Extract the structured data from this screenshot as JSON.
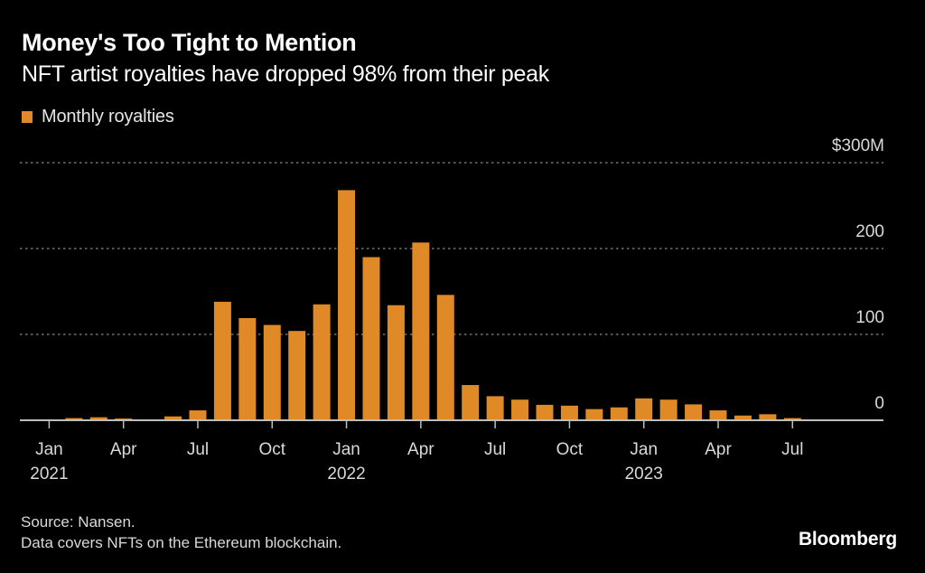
{
  "header": {
    "title": "Money's Too Tight to Mention",
    "subtitle": "NFT artist royalties have dropped 98% from their peak"
  },
  "legend": {
    "label": "Monthly royalties",
    "color": "#DF8A26"
  },
  "footer": {
    "source": "Source: Nansen.",
    "note": "Data covers NFTs on the Ethereum blockchain.",
    "brand": "Bloomberg"
  },
  "colors": {
    "background": "#000000",
    "bar": "#DF8A26",
    "grid": "#8a8a8a",
    "axis": "#bdbdbd",
    "text": "#d9d9d9"
  },
  "chart_data": {
    "type": "bar",
    "title": "Money's Too Tight to Mention",
    "subtitle": "NFT artist royalties have dropped 98% from their peak",
    "xlabel": "",
    "ylabel": "",
    "units": "$M",
    "ylim": [
      0,
      300
    ],
    "yticks": [
      0,
      100,
      200,
      300
    ],
    "ytick_labels": [
      "0",
      "100",
      "200",
      "$300M"
    ],
    "y_axis_position": "right",
    "grid": true,
    "legend_position": "top-left",
    "categories": [
      "2021-01",
      "2021-02",
      "2021-03",
      "2021-04",
      "2021-05",
      "2021-06",
      "2021-07",
      "2021-08",
      "2021-09",
      "2021-10",
      "2021-11",
      "2021-12",
      "2022-01",
      "2022-02",
      "2022-03",
      "2022-04",
      "2022-05",
      "2022-06",
      "2022-07",
      "2022-08",
      "2022-09",
      "2022-10",
      "2022-11",
      "2022-12",
      "2023-01",
      "2023-02",
      "2023-03",
      "2023-04",
      "2023-05",
      "2023-06",
      "2023-07"
    ],
    "series": [
      {
        "name": "Monthly royalties",
        "values": [
          0.5,
          2.5,
          3.5,
          2,
          1,
          4.5,
          11.5,
          138,
          119,
          111,
          104,
          135,
          268,
          190,
          134,
          207,
          146,
          41,
          28,
          24,
          18,
          17,
          13,
          15,
          25.5,
          24,
          18.5,
          11.5,
          5.5,
          7,
          2.5
        ]
      }
    ],
    "xticks": [
      {
        "index": 0,
        "month": "Jan",
        "year": "2021"
      },
      {
        "index": 3,
        "month": "Apr",
        "year": ""
      },
      {
        "index": 6,
        "month": "Jul",
        "year": ""
      },
      {
        "index": 9,
        "month": "Oct",
        "year": ""
      },
      {
        "index": 12,
        "month": "Jan",
        "year": "2022"
      },
      {
        "index": 15,
        "month": "Apr",
        "year": ""
      },
      {
        "index": 18,
        "month": "Jul",
        "year": ""
      },
      {
        "index": 21,
        "month": "Oct",
        "year": ""
      },
      {
        "index": 24,
        "month": "Jan",
        "year": "2023"
      },
      {
        "index": 27,
        "month": "Apr",
        "year": ""
      },
      {
        "index": 30,
        "month": "Jul",
        "year": ""
      }
    ]
  }
}
